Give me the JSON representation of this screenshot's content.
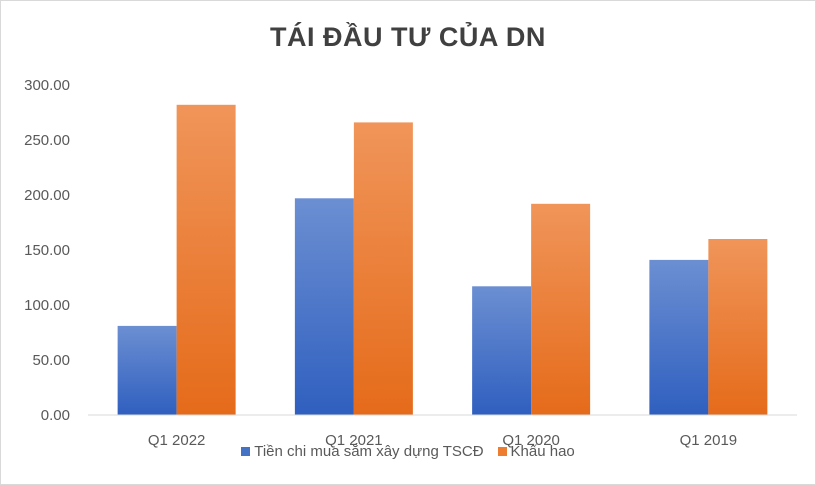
{
  "chart_data": {
    "type": "bar",
    "title": "TÁI ĐẦU TƯ CỦA DN",
    "xlabel": "",
    "ylabel": "",
    "categories": [
      "Q1 2022",
      "Q1 2021",
      "Q1 2020",
      "Q1 2019"
    ],
    "series": [
      {
        "name": "Tiền chi mua sắm xây dựng TSCĐ",
        "values": [
          81,
          197,
          117,
          141
        ],
        "color": "#4472c4"
      },
      {
        "name": "Khấu hao",
        "values": [
          282,
          266,
          192,
          160
        ],
        "color": "#ed7d31"
      }
    ],
    "ylim": [
      0,
      300
    ],
    "yticks": [
      "0.00",
      "50.00",
      "100.00",
      "150.00",
      "200.00",
      "250.00",
      "300.00"
    ],
    "grid": false,
    "legend_position": "bottom"
  }
}
